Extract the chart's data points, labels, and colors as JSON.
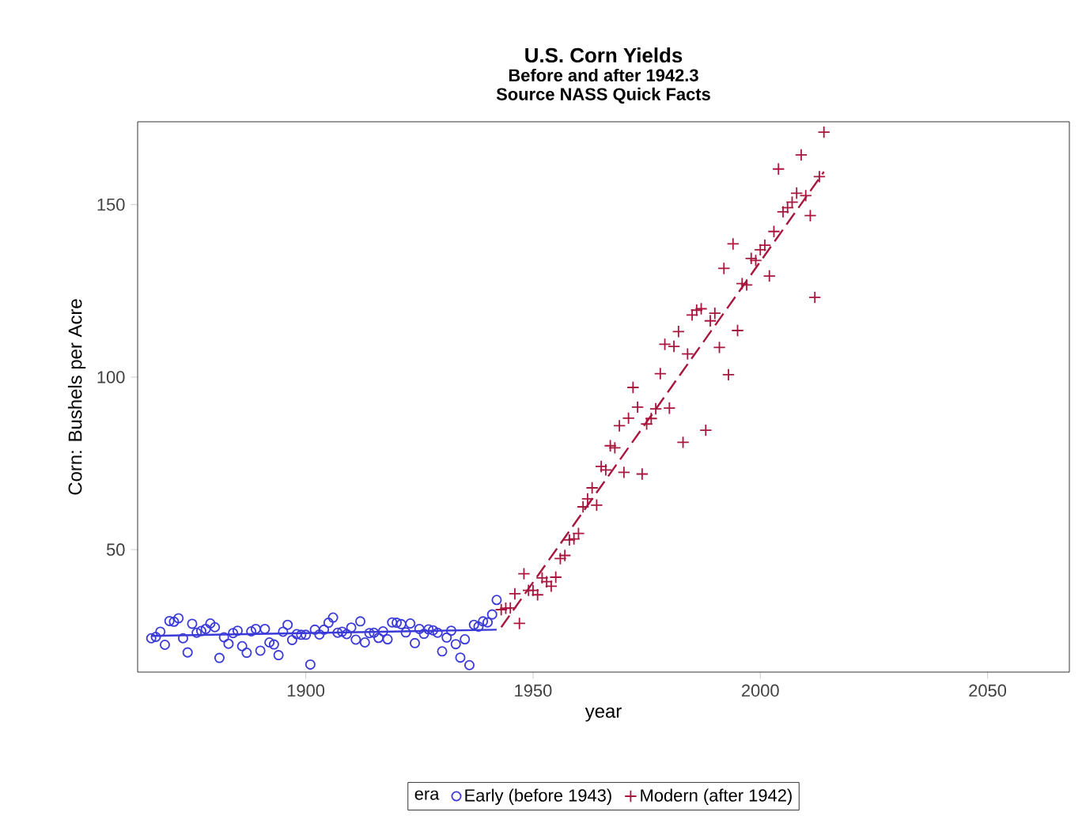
{
  "chart_data": {
    "type": "scatter",
    "title": "U.S. Corn Yields",
    "subtitle": "Before and after 1942.3",
    "annotations": [
      "Source NASS Quick Facts"
    ],
    "xlabel": "year",
    "ylabel": "Corn: Bushels per Acre",
    "legend_title": "era",
    "legend": "bottom",
    "grid": false,
    "xlim": [
      1863,
      2068
    ],
    "ylim": [
      14.5,
      174
    ],
    "xticks": [
      1900,
      1950,
      2000,
      2050
    ],
    "yticks": [
      50,
      100,
      150
    ],
    "series": [
      {
        "name": "Early (before 1943)",
        "marker": "circle",
        "color": "#3a3ad8",
        "x": [
          1866,
          1867,
          1868,
          1869,
          1870,
          1871,
          1872,
          1873,
          1874,
          1875,
          1876,
          1877,
          1878,
          1879,
          1880,
          1881,
          1882,
          1883,
          1884,
          1885,
          1886,
          1887,
          1888,
          1889,
          1890,
          1891,
          1892,
          1893,
          1894,
          1895,
          1896,
          1897,
          1898,
          1899,
          1900,
          1901,
          1902,
          1903,
          1904,
          1905,
          1906,
          1907,
          1908,
          1909,
          1910,
          1911,
          1912,
          1913,
          1914,
          1915,
          1916,
          1917,
          1918,
          1919,
          1920,
          1921,
          1922,
          1923,
          1924,
          1925,
          1926,
          1927,
          1928,
          1929,
          1930,
          1931,
          1932,
          1933,
          1934,
          1935,
          1936,
          1937,
          1938,
          1939,
          1940,
          1941,
          1942
        ],
        "values": [
          24.3,
          24.7,
          26.2,
          22.4,
          29.3,
          29.1,
          30.1,
          24.3,
          20.2,
          28.5,
          25.9,
          26.4,
          27.0,
          28.6,
          27.5,
          18.6,
          24.6,
          22.7,
          25.8,
          26.5,
          22.0,
          20.1,
          26.3,
          27.0,
          20.7,
          27.0,
          23.1,
          22.5,
          19.4,
          26.2,
          28.2,
          23.8,
          25.5,
          25.3,
          25.3,
          16.7,
          26.8,
          25.4,
          26.8,
          28.8,
          30.3,
          25.9,
          26.2,
          25.5,
          27.4,
          23.9,
          29.2,
          23.1,
          25.8,
          25.9,
          24.4,
          26.3,
          24.0,
          28.9,
          28.8,
          28.4,
          26.0,
          28.6,
          22.9,
          27.0,
          25.6,
          26.9,
          26.6,
          25.9,
          20.5,
          24.5,
          26.5,
          22.6,
          18.7,
          24.0,
          16.5,
          28.2,
          27.7,
          29.2,
          28.9,
          31.2,
          35.4
        ]
      },
      {
        "name": "Modern (after 1942)",
        "marker": "cross",
        "color": "#a8163e",
        "x": [
          1943,
          1944,
          1945,
          1946,
          1947,
          1948,
          1949,
          1950,
          1951,
          1952,
          1953,
          1954,
          1955,
          1956,
          1957,
          1958,
          1959,
          1960,
          1961,
          1962,
          1963,
          1964,
          1965,
          1966,
          1967,
          1968,
          1969,
          1970,
          1971,
          1972,
          1973,
          1974,
          1975,
          1976,
          1977,
          1978,
          1979,
          1980,
          1981,
          1982,
          1983,
          1984,
          1985,
          1986,
          1987,
          1988,
          1989,
          1990,
          1991,
          1992,
          1993,
          1994,
          1995,
          1996,
          1997,
          1998,
          1999,
          2000,
          2001,
          2002,
          2003,
          2004,
          2005,
          2006,
          2007,
          2008,
          2009,
          2010,
          2011,
          2012,
          2013,
          2014
        ],
        "values": [
          32.6,
          33.0,
          33.1,
          37.2,
          28.6,
          43.0,
          38.2,
          38.2,
          36.9,
          41.8,
          40.7,
          39.4,
          42.0,
          47.4,
          48.3,
          52.8,
          53.1,
          54.7,
          62.4,
          64.7,
          67.9,
          62.9,
          74.1,
          73.1,
          80.1,
          79.5,
          85.9,
          72.4,
          88.1,
          97.0,
          91.3,
          71.9,
          86.4,
          88.0,
          90.8,
          101.0,
          109.5,
          91.0,
          108.9,
          113.2,
          81.1,
          106.7,
          118.0,
          119.4,
          119.8,
          84.6,
          116.3,
          118.5,
          108.6,
          131.5,
          100.7,
          138.6,
          113.5,
          127.1,
          126.7,
          134.4,
          133.8,
          136.9,
          138.2,
          129.3,
          142.2,
          160.3,
          147.9,
          149.1,
          150.7,
          153.3,
          164.4,
          152.6,
          146.8,
          123.1,
          158.1,
          171.0
        ]
      },
      {
        "type": "line",
        "marker": "none",
        "line_style": "solid",
        "color": "#3a3ad8",
        "x": [
          1866,
          1942
        ],
        "values": [
          25.0,
          26.8
        ]
      },
      {
        "type": "line",
        "marker": "none",
        "line_style": "dashed",
        "color": "#a8163e",
        "x": [
          1943,
          2014
        ],
        "values": [
          27.5,
          159.5
        ]
      }
    ]
  }
}
